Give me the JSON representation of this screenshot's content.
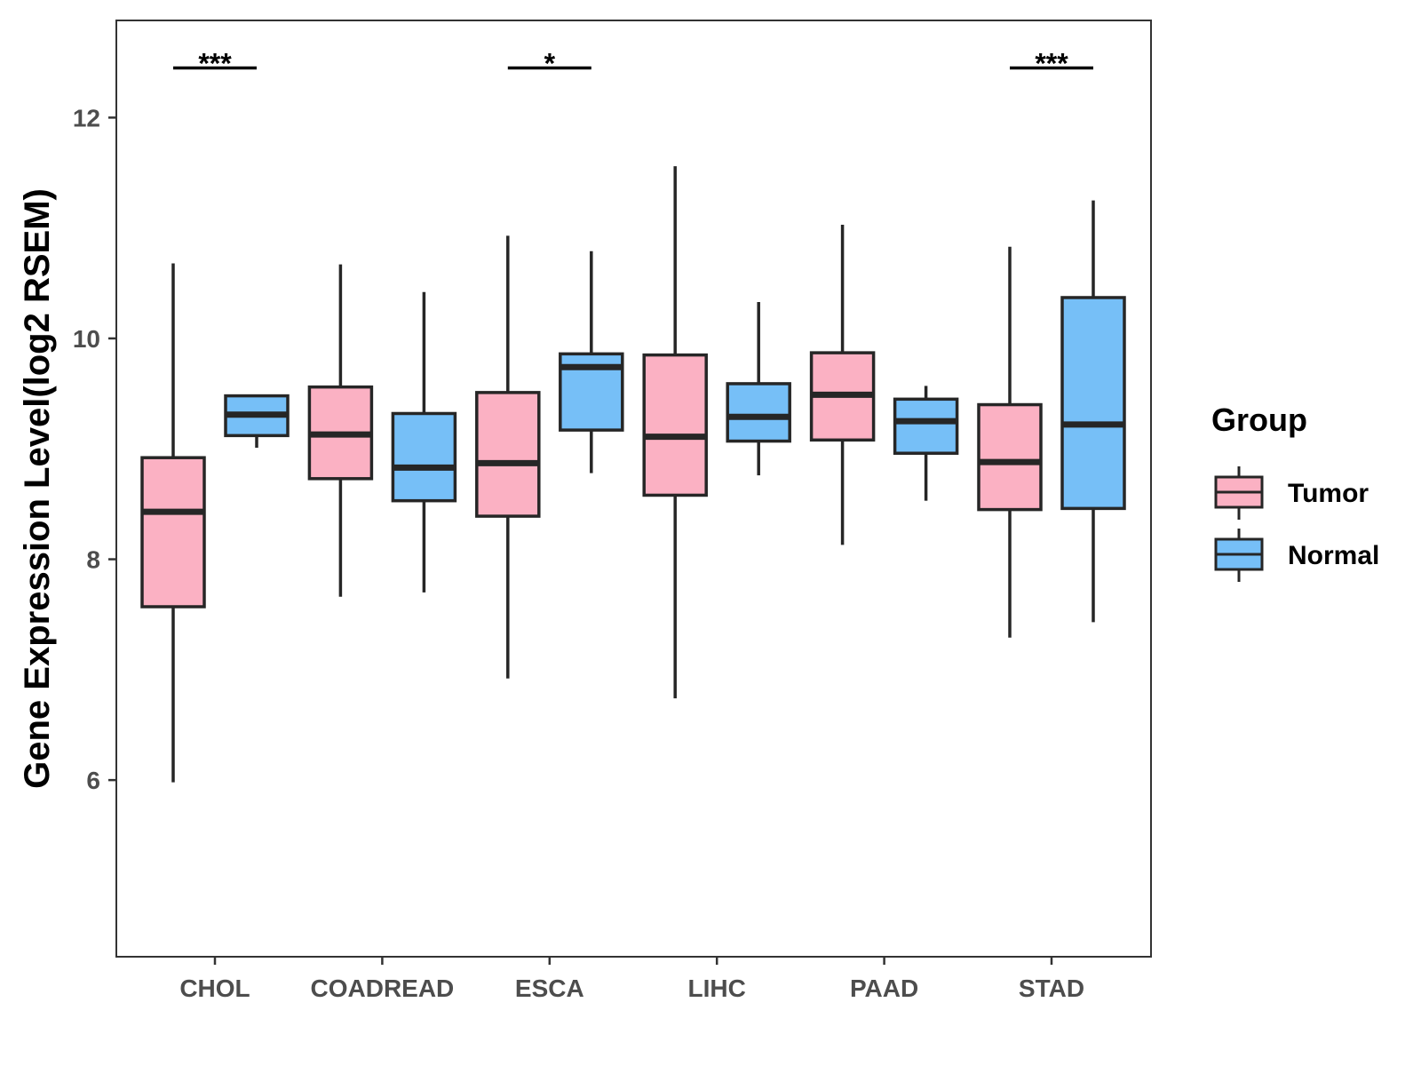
{
  "chart_data": {
    "type": "boxplot",
    "title": "",
    "xlabel": "",
    "ylabel": "Gene Expression Level(log2 RSEM)",
    "ylim": [
      4.4,
      12.88
    ],
    "yticks": [
      6,
      8,
      10,
      12
    ],
    "categories": [
      "CHOL",
      "COADREAD",
      "ESCA",
      "LIHC",
      "PAAD",
      "STAD"
    ],
    "legend": {
      "title": "Group",
      "position": "right",
      "items": [
        {
          "name": "Tumor",
          "color": "#FBB1C3"
        },
        {
          "name": "Normal",
          "color": "#76BFF7"
        }
      ]
    },
    "series": [
      {
        "name": "Tumor",
        "color": "#FBB1C3",
        "boxes": [
          {
            "min": 5.98,
            "q1": 7.57,
            "median": 8.43,
            "q3": 8.92,
            "max": 10.68
          },
          {
            "min": 7.66,
            "q1": 8.73,
            "median": 9.13,
            "q3": 9.56,
            "max": 10.67
          },
          {
            "min": 6.92,
            "q1": 8.39,
            "median": 8.87,
            "q3": 9.51,
            "max": 10.93
          },
          {
            "min": 6.74,
            "q1": 8.58,
            "median": 9.11,
            "q3": 9.85,
            "max": 11.56
          },
          {
            "min": 8.13,
            "q1": 9.08,
            "median": 9.49,
            "q3": 9.87,
            "max": 11.03
          },
          {
            "min": 7.29,
            "q1": 8.45,
            "median": 8.88,
            "q3": 9.4,
            "max": 10.83
          }
        ]
      },
      {
        "name": "Normal",
        "color": "#76BFF7",
        "boxes": [
          {
            "min": 9.01,
            "q1": 9.12,
            "median": 9.31,
            "q3": 9.48,
            "max": 9.48
          },
          {
            "min": 7.7,
            "q1": 8.53,
            "median": 8.83,
            "q3": 9.32,
            "max": 10.42
          },
          {
            "min": 8.78,
            "q1": 9.17,
            "median": 9.74,
            "q3": 9.86,
            "max": 10.79
          },
          {
            "min": 8.76,
            "q1": 9.07,
            "median": 9.29,
            "q3": 9.59,
            "max": 10.33
          },
          {
            "min": 8.53,
            "q1": 8.96,
            "median": 9.25,
            "q3": 9.45,
            "max": 9.57
          },
          {
            "min": 7.43,
            "q1": 8.46,
            "median": 9.22,
            "q3": 10.37,
            "max": 11.25
          }
        ]
      }
    ],
    "significance": [
      {
        "category": "CHOL",
        "label": "***",
        "y": 12.45
      },
      {
        "category": "ESCA",
        "label": "*",
        "y": 12.45
      },
      {
        "category": "STAD",
        "label": "***",
        "y": 12.45
      }
    ]
  }
}
